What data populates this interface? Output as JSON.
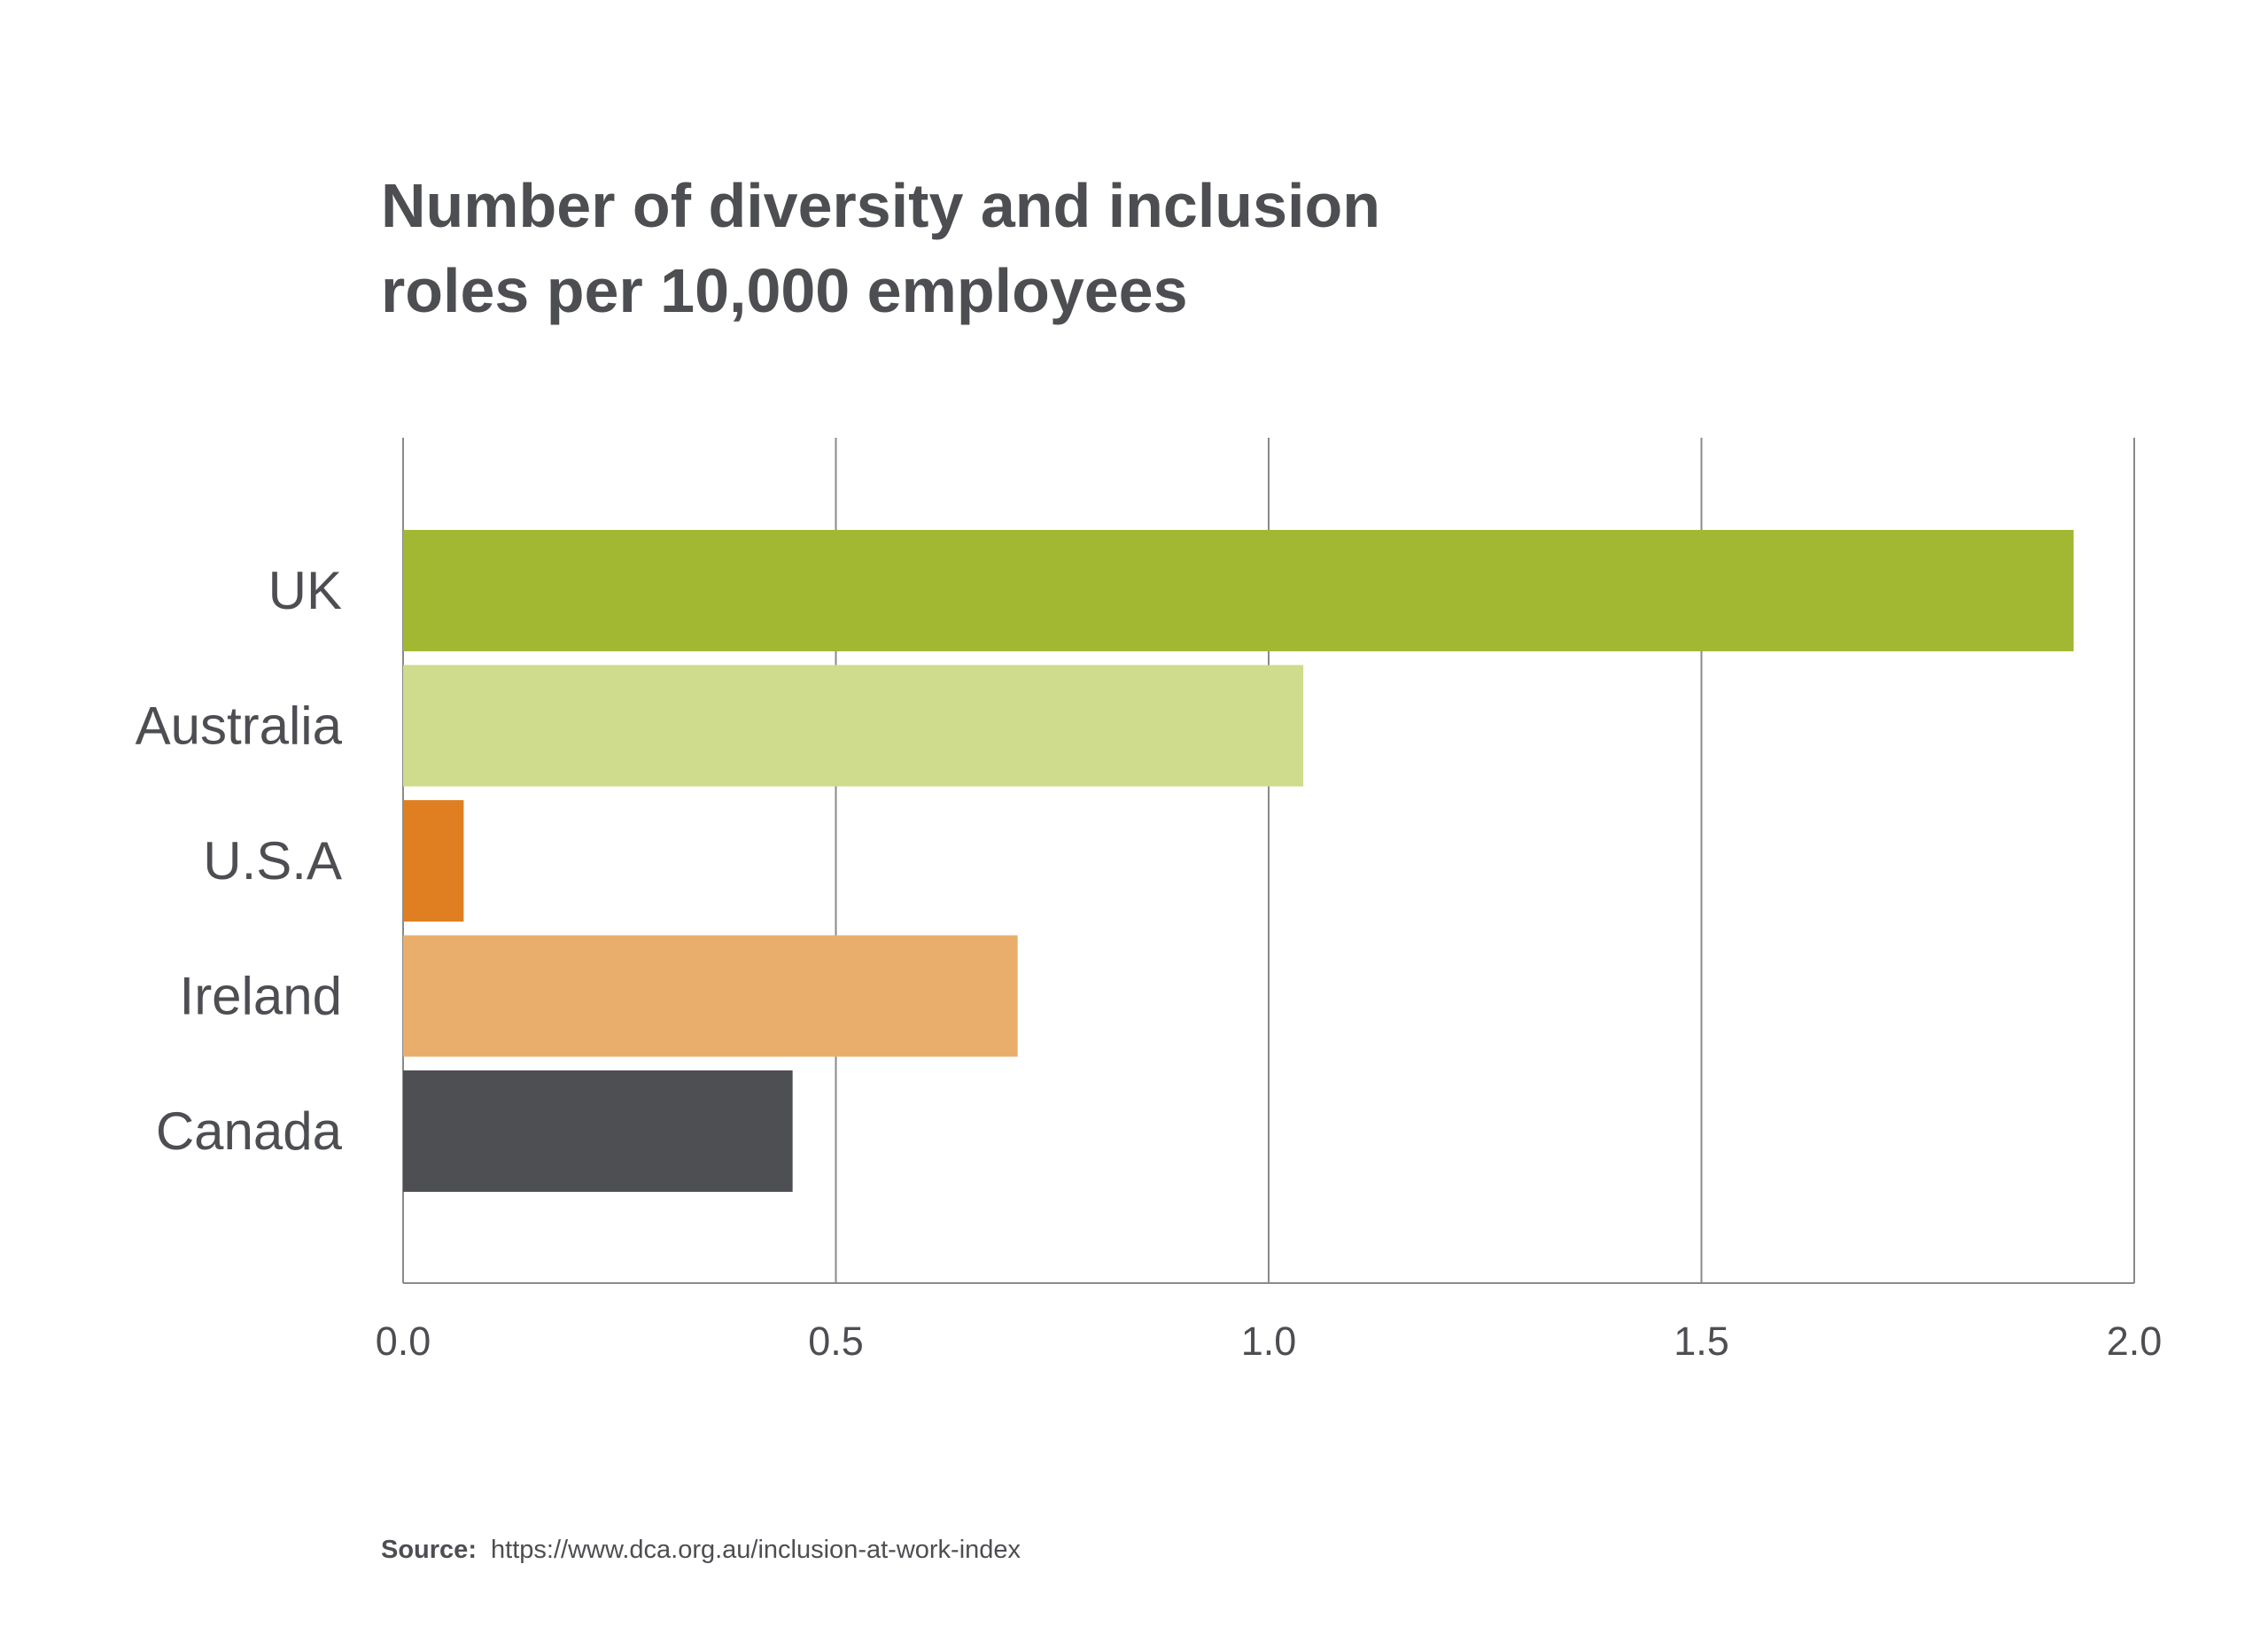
{
  "chart_data": {
    "type": "bar",
    "orientation": "horizontal",
    "title_lines": [
      "Number of diversity and inclusion",
      "roles per 10,000 employees"
    ],
    "categories": [
      "UK",
      "Australia",
      "U.S.A",
      "Ireland",
      "Canada"
    ],
    "values": [
      1.93,
      1.04,
      0.07,
      0.71,
      0.45
    ],
    "colors": [
      "#a2b833",
      "#cfdb8d",
      "#e07f21",
      "#eaae6c",
      "#4e4f53"
    ],
    "xlim": [
      0,
      2.0
    ],
    "x_ticks": [
      "0.0",
      "0.5",
      "1.0",
      "1.5",
      "2.0"
    ],
    "xlabel": "",
    "ylabel": "",
    "grid": "vertical",
    "legend": "none"
  },
  "source": {
    "prefix": "Source:",
    "text": "https://www.dca.org.au/inclusion-at-work-index"
  }
}
